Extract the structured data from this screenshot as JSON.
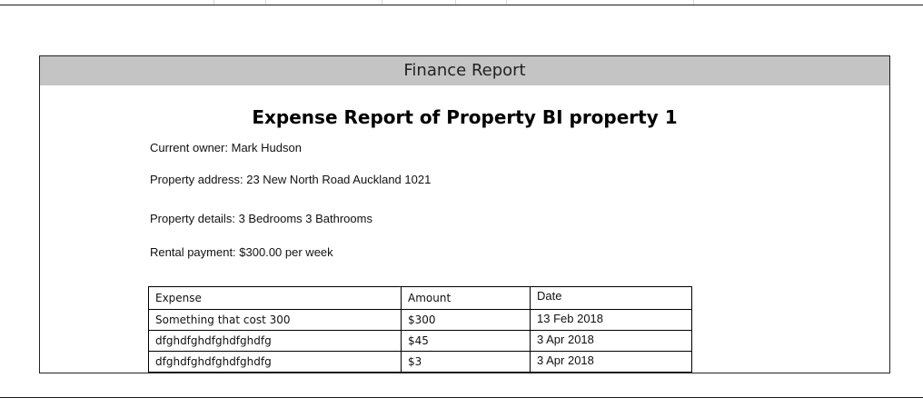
{
  "report": {
    "header": "Finance Report",
    "title": "Expense Report of Property BI property 1",
    "owner": {
      "label": "Current owner:",
      "value": "Mark Hudson"
    },
    "address": {
      "label": "Property address:",
      "value": "23 New North Road Auckland 1021"
    },
    "details": {
      "label": "Property details:",
      "value": "3 Bedrooms 3 Bathrooms"
    },
    "rental": {
      "label": "Rental payment:",
      "value": "$300.00 per week"
    }
  },
  "expenses_table": {
    "headers": [
      "Expense",
      "Amount",
      "Date"
    ],
    "rows": [
      [
        "Something that cost 300",
        "$300",
        "13 Feb 2018"
      ],
      [
        "dfghdfghdfghdfghdfg",
        "$45",
        "3 Apr 2018"
      ],
      [
        "dfghdfghdfghdfghdfg",
        "$3",
        "3 Apr 2018"
      ]
    ]
  }
}
